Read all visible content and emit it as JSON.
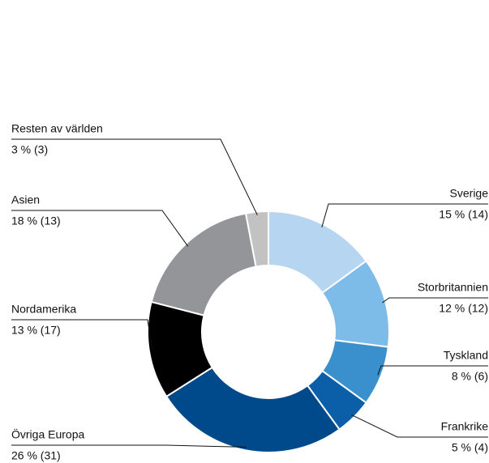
{
  "chart_data": {
    "type": "pie",
    "donut": true,
    "categories": [
      "Sverige",
      "Storbritannien",
      "Tyskland",
      "Frankrike",
      "Övriga Europa",
      "Nordamerika",
      "Asien",
      "Resten av världen"
    ],
    "values": [
      15,
      12,
      8,
      5,
      26,
      13,
      18,
      3
    ],
    "value_labels": [
      "15 % (14)",
      "12 % (12)",
      "8 % (6)",
      "5 % (4)",
      "26 % (31)",
      "13 % (17)",
      "18 % (13)",
      "3 % (3)"
    ],
    "colors": [
      "#b5d5f0",
      "#7dbbe8",
      "#3a90cc",
      "#0a5fa8",
      "#004a8c",
      "#000000",
      "#939598",
      "#c2c2c2"
    ]
  }
}
